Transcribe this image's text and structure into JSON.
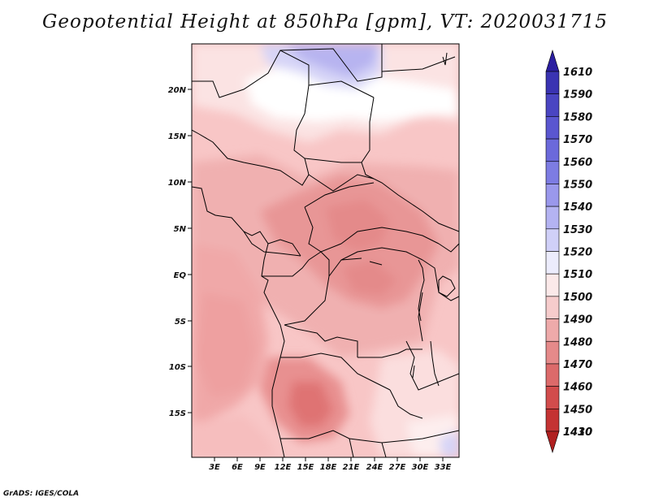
{
  "title": "Geopotential Height at 850hPa [gpm], VT: 2020031715",
  "footer": "GrADS: IGES/COLA",
  "map": {
    "y_labels": [
      "20N",
      "15N",
      "10N",
      "5N",
      "EQ",
      "5S",
      "10S",
      "15S"
    ],
    "x_labels": [
      "3E",
      "6E",
      "9E",
      "12E",
      "15E",
      "18E",
      "21E",
      "24E",
      "27E",
      "30E",
      "33E"
    ]
  },
  "colorbar": {
    "levels": [
      "1610",
      "1590",
      "1580",
      "1570",
      "1560",
      "1550",
      "1540",
      "1530",
      "1520",
      "1510",
      "1500",
      "1490",
      "1480",
      "1470",
      "1460",
      "1450",
      "1430",
      "1410"
    ],
    "colors": [
      "#2b1ea0",
      "#3a33b2",
      "#4a45c2",
      "#5a56d0",
      "#6b69db",
      "#7d7ce3",
      "#9a98ec",
      "#b4b3f2",
      "#d0d0f8",
      "#ececfc",
      "#fbe9e9",
      "#f6cccc",
      "#eeaaaa",
      "#e58a8a",
      "#dc6a6a",
      "#d24c4c",
      "#c43333",
      "#b02020"
    ]
  }
}
